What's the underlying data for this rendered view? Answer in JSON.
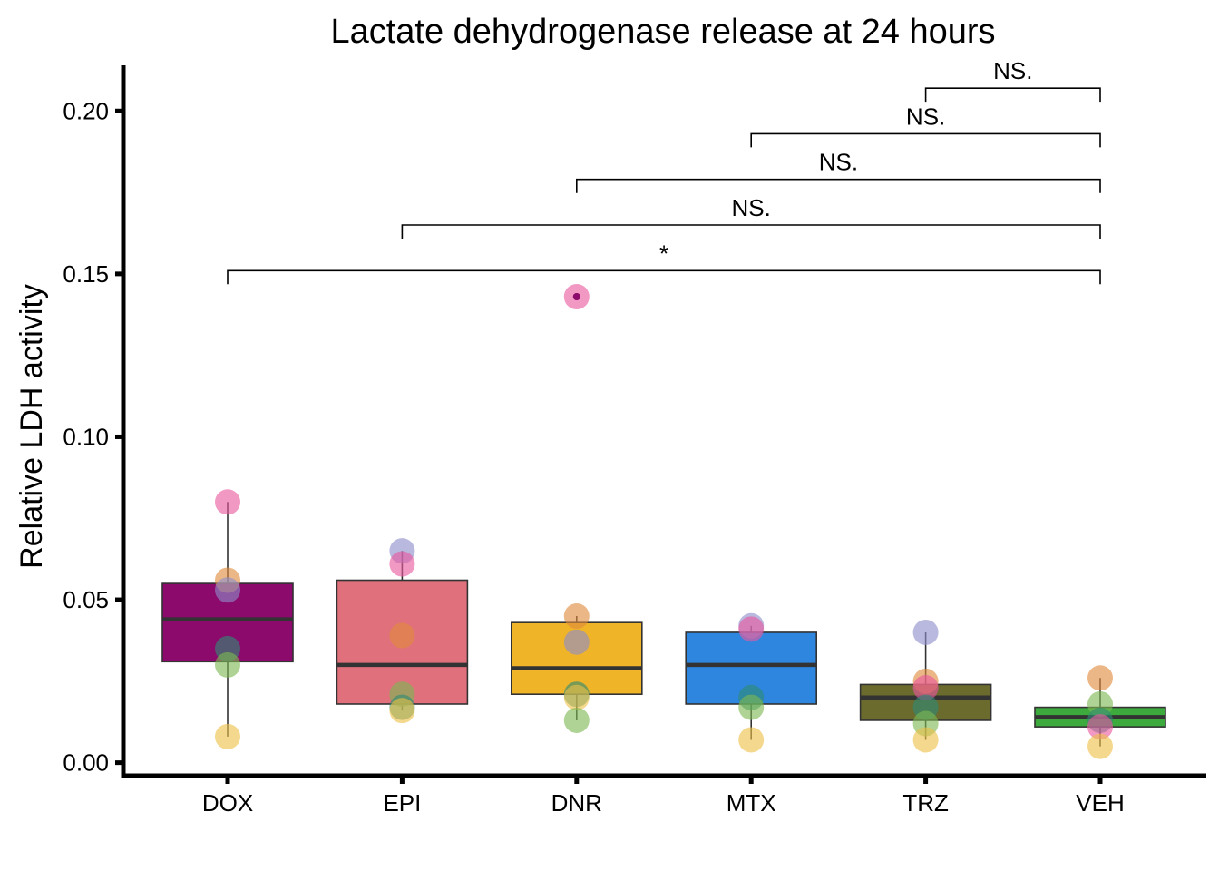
{
  "chart_data": {
    "type": "box",
    "title": "Lactate dehydrogenase release at 24 hours",
    "xlabel": "",
    "ylabel": "Relative LDH activity",
    "ylim": [
      -0.004,
      0.214
    ],
    "yticks": [
      0.0,
      0.05,
      0.1,
      0.15,
      0.2
    ],
    "ytick_labels": [
      "0.00",
      "0.05",
      "0.10",
      "0.15",
      "0.20"
    ],
    "grid": false,
    "legend": "none",
    "categories": [
      "DOX",
      "EPI",
      "DNR",
      "MTX",
      "TRZ",
      "VEH"
    ],
    "boxes": [
      {
        "category": "DOX",
        "color": "#8B0A6B",
        "q1": 0.031,
        "median": 0.044,
        "q3": 0.055,
        "whisker_low": 0.008,
        "whisker_high": 0.08
      },
      {
        "category": "EPI",
        "color": "#E0707C",
        "q1": 0.018,
        "median": 0.03,
        "q3": 0.056,
        "whisker_low": 0.016,
        "whisker_high": 0.065
      },
      {
        "category": "DNR",
        "color": "#F0B429",
        "q1": 0.021,
        "median": 0.029,
        "q3": 0.043,
        "whisker_low": 0.013,
        "whisker_high": 0.045
      },
      {
        "category": "MTX",
        "color": "#2E86DE",
        "q1": 0.018,
        "median": 0.03,
        "q3": 0.04,
        "whisker_low": 0.007,
        "whisker_high": 0.042
      },
      {
        "category": "TRZ",
        "color": "#6B6B2E",
        "q1": 0.013,
        "median": 0.02,
        "q3": 0.024,
        "whisker_low": 0.007,
        "whisker_high": 0.04
      },
      {
        "category": "VEH",
        "color": "#3DAA3D",
        "q1": 0.011,
        "median": 0.014,
        "q3": 0.017,
        "whisker_low": 0.005,
        "whisker_high": 0.026
      }
    ],
    "outliers": [
      {
        "category": "DNR",
        "value": 0.143
      }
    ],
    "points": [
      {
        "category": "DOX",
        "value": 0.08,
        "color": "#E8589E"
      },
      {
        "category": "DOX",
        "value": 0.056,
        "color": "#E08A3C"
      },
      {
        "category": "DOX",
        "value": 0.053,
        "color": "#8E8ECC"
      },
      {
        "category": "DOX",
        "value": 0.035,
        "color": "#2E8B75"
      },
      {
        "category": "DOX",
        "value": 0.03,
        "color": "#7CB852"
      },
      {
        "category": "DOX",
        "value": 0.008,
        "color": "#EBC048"
      },
      {
        "category": "EPI",
        "value": 0.065,
        "color": "#8E8ECC"
      },
      {
        "category": "EPI",
        "value": 0.061,
        "color": "#E8589E"
      },
      {
        "category": "EPI",
        "value": 0.039,
        "color": "#E08A3C"
      },
      {
        "category": "EPI",
        "value": 0.021,
        "color": "#7CB852"
      },
      {
        "category": "EPI",
        "value": 0.017,
        "color": "#2E8B75"
      },
      {
        "category": "EPI",
        "value": 0.016,
        "color": "#EBC048"
      },
      {
        "category": "DNR",
        "value": 0.143,
        "color": "#E8589E"
      },
      {
        "category": "DNR",
        "value": 0.045,
        "color": "#E08A3C"
      },
      {
        "category": "DNR",
        "value": 0.037,
        "color": "#8E8ECC"
      },
      {
        "category": "DNR",
        "value": 0.021,
        "color": "#2E8B75"
      },
      {
        "category": "DNR",
        "value": 0.02,
        "color": "#EBC048"
      },
      {
        "category": "DNR",
        "value": 0.013,
        "color": "#7CB852"
      },
      {
        "category": "MTX",
        "value": 0.042,
        "color": "#8E8ECC"
      },
      {
        "category": "MTX",
        "value": 0.041,
        "color": "#E8589E"
      },
      {
        "category": "MTX",
        "value": 0.02,
        "color": "#2E8B75"
      },
      {
        "category": "MTX",
        "value": 0.017,
        "color": "#7CB852"
      },
      {
        "category": "MTX",
        "value": 0.007,
        "color": "#EBC048"
      },
      {
        "category": "TRZ",
        "value": 0.04,
        "color": "#8E8ECC"
      },
      {
        "category": "TRZ",
        "value": 0.025,
        "color": "#E08A3C"
      },
      {
        "category": "TRZ",
        "value": 0.023,
        "color": "#E8589E"
      },
      {
        "category": "TRZ",
        "value": 0.017,
        "color": "#2E8B75"
      },
      {
        "category": "TRZ",
        "value": 0.012,
        "color": "#7CB852"
      },
      {
        "category": "TRZ",
        "value": 0.007,
        "color": "#EBC048"
      },
      {
        "category": "VEH",
        "value": 0.026,
        "color": "#E08A3C"
      },
      {
        "category": "VEH",
        "value": 0.018,
        "color": "#7CB852"
      },
      {
        "category": "VEH",
        "value": 0.013,
        "color": "#2E8B75"
      },
      {
        "category": "VEH",
        "value": 0.011,
        "color": "#E8589E"
      },
      {
        "category": "VEH",
        "value": 0.005,
        "color": "#EBC048"
      }
    ],
    "comparisons": [
      {
        "from": "DOX",
        "to": "VEH",
        "y": 0.151,
        "label": "*"
      },
      {
        "from": "EPI",
        "to": "VEH",
        "y": 0.165,
        "label": "NS."
      },
      {
        "from": "DNR",
        "to": "VEH",
        "y": 0.179,
        "label": "NS."
      },
      {
        "from": "MTX",
        "to": "VEH",
        "y": 0.193,
        "label": "NS."
      },
      {
        "from": "TRZ",
        "to": "VEH",
        "y": 0.207,
        "label": "NS."
      }
    ],
    "colors": {
      "axis": "#000000",
      "box_outline": "#333333",
      "median_line": "#333333"
    }
  }
}
